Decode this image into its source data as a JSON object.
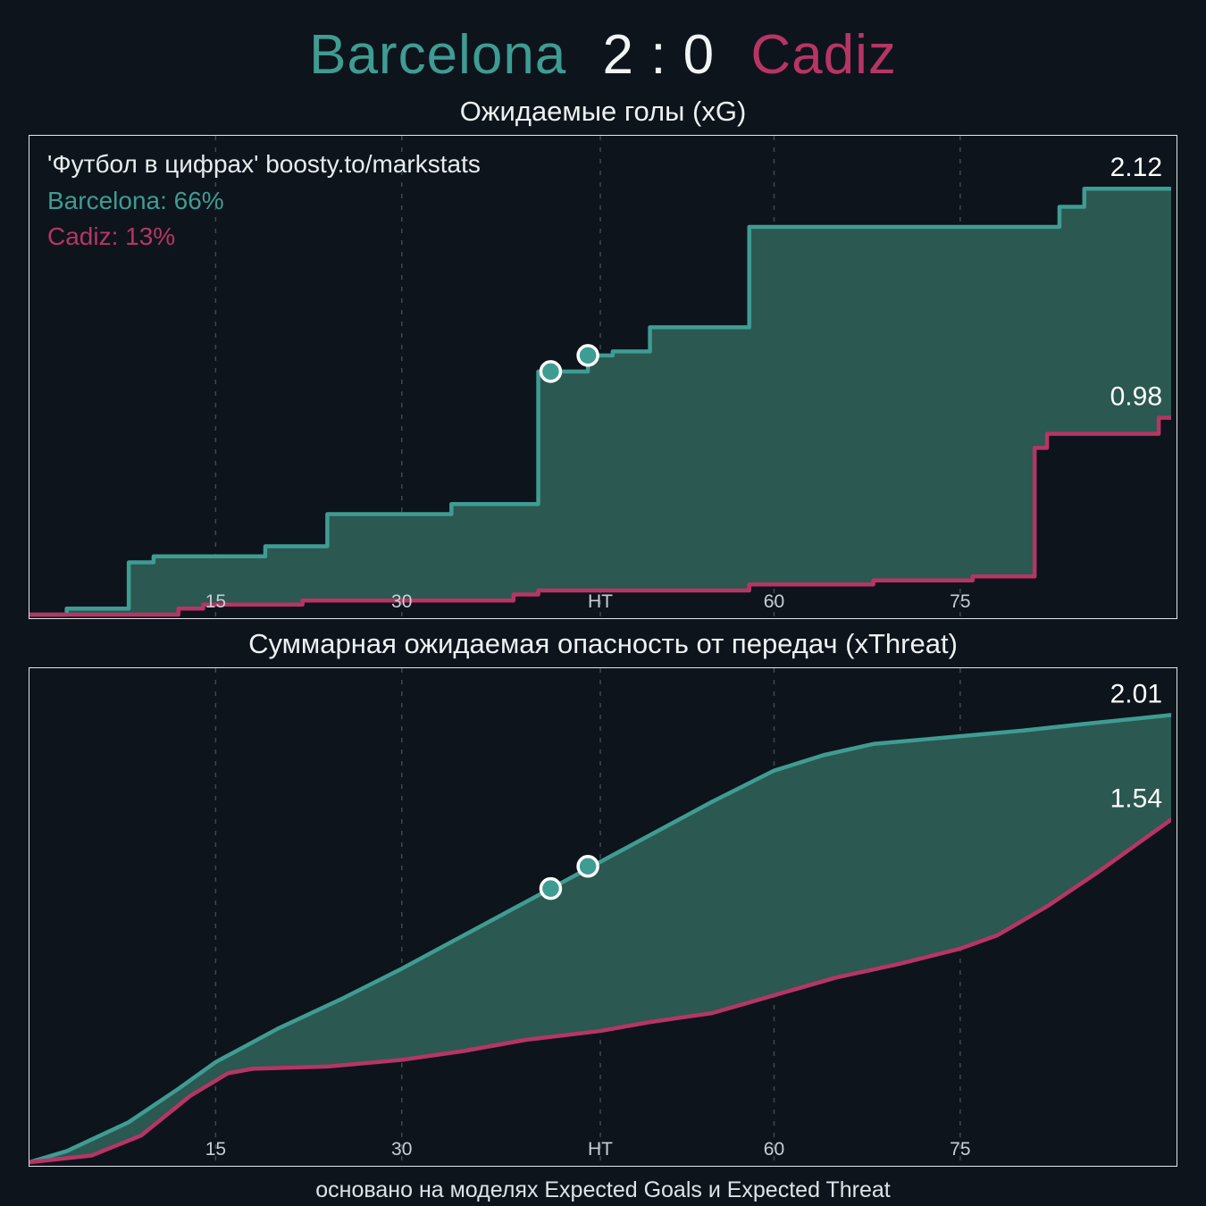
{
  "header": {
    "home_team": "Barcelona",
    "score": "2 : 0",
    "away_team": "Cadiz"
  },
  "colors": {
    "background": "#0d141c",
    "home": "#3f9c92",
    "away": "#b73565",
    "fill": "#2b5851",
    "grid": "#5d6c75",
    "tick": "#c7cfd4",
    "value_label": "#ffffff",
    "text": "#e8ecee"
  },
  "footer": {
    "note": "основано на моделях Expected Goals и Expected Threat"
  },
  "chart_data": [
    {
      "type": "area",
      "title": "Ожидаемые голы (xG)",
      "watermark": "'Футбол в цифрах' boosty.to/markstats",
      "legend": [
        {
          "label": "Barcelona: 66%",
          "color_key": "home"
        },
        {
          "label": "Cadiz: 13%",
          "color_key": "away"
        }
      ],
      "step": true,
      "xlim": [
        0,
        92
      ],
      "ylim": [
        0,
        2.25
      ],
      "x_ticks": [
        {
          "x": 15,
          "label": "15"
        },
        {
          "x": 30,
          "label": "30"
        },
        {
          "x": 46,
          "label": "HT"
        },
        {
          "x": 60,
          "label": "60"
        },
        {
          "x": 75,
          "label": "75"
        }
      ],
      "series": [
        {
          "name": "Barcelona xG",
          "final": 2.12,
          "label": "2.12",
          "color_key": "home",
          "points": [
            [
              0,
              0
            ],
            [
              3,
              0.03
            ],
            [
              8,
              0.26
            ],
            [
              10,
              0.29
            ],
            [
              19,
              0.34
            ],
            [
              24,
              0.5
            ],
            [
              34,
              0.55
            ],
            [
              41,
              1.21
            ],
            [
              45,
              1.29
            ],
            [
              47,
              1.31
            ],
            [
              50,
              1.43
            ],
            [
              58,
              1.93
            ],
            [
              83,
              2.03
            ],
            [
              85,
              2.12
            ],
            [
              92,
              2.12
            ]
          ]
        },
        {
          "name": "Cadiz xG",
          "final": 0.98,
          "label": "0.98",
          "color_key": "away",
          "points": [
            [
              0,
              0
            ],
            [
              12,
              0.03
            ],
            [
              14,
              0.05
            ],
            [
              22,
              0.07
            ],
            [
              39,
              0.1
            ],
            [
              41,
              0.12
            ],
            [
              58,
              0.15
            ],
            [
              68,
              0.17
            ],
            [
              76,
              0.19
            ],
            [
              81,
              0.83
            ],
            [
              82,
              0.9
            ],
            [
              91,
              0.98
            ],
            [
              92,
              0.98
            ]
          ]
        }
      ],
      "goal_markers": [
        [
          42,
          1.21
        ],
        [
          45,
          1.29
        ]
      ]
    },
    {
      "type": "area",
      "title": "Суммарная ожидаемая опасность от передач (xThreat)",
      "watermark": "",
      "legend": [],
      "step": false,
      "xlim": [
        0,
        92
      ],
      "ylim": [
        0,
        2.1
      ],
      "x_ticks": [
        {
          "x": 15,
          "label": "15"
        },
        {
          "x": 30,
          "label": "30"
        },
        {
          "x": 46,
          "label": "HT"
        },
        {
          "x": 60,
          "label": "60"
        },
        {
          "x": 75,
          "label": "75"
        }
      ],
      "series": [
        {
          "name": "Barcelona xThreat",
          "final": 2.01,
          "label": "2.01",
          "color_key": "home",
          "points": [
            [
              0,
              0
            ],
            [
              3,
              0.05
            ],
            [
              8,
              0.18
            ],
            [
              12,
              0.33
            ],
            [
              15,
              0.45
            ],
            [
              20,
              0.6
            ],
            [
              25,
              0.73
            ],
            [
              30,
              0.87
            ],
            [
              35,
              1.02
            ],
            [
              40,
              1.17
            ],
            [
              43,
              1.26
            ],
            [
              46,
              1.35
            ],
            [
              50,
              1.47
            ],
            [
              55,
              1.62
            ],
            [
              60,
              1.76
            ],
            [
              64,
              1.83
            ],
            [
              68,
              1.88
            ],
            [
              72,
              1.9
            ],
            [
              76,
              1.92
            ],
            [
              80,
              1.94
            ],
            [
              85,
              1.97
            ],
            [
              92,
              2.01
            ]
          ]
        },
        {
          "name": "Cadiz xThreat",
          "final": 1.54,
          "label": "1.54",
          "color_key": "away",
          "points": [
            [
              0,
              0
            ],
            [
              5,
              0.03
            ],
            [
              9,
              0.12
            ],
            [
              13,
              0.3
            ],
            [
              16,
              0.4
            ],
            [
              18,
              0.42
            ],
            [
              24,
              0.43
            ],
            [
              30,
              0.46
            ],
            [
              35,
              0.5
            ],
            [
              40,
              0.55
            ],
            [
              46,
              0.59
            ],
            [
              50,
              0.63
            ],
            [
              55,
              0.67
            ],
            [
              60,
              0.75
            ],
            [
              65,
              0.83
            ],
            [
              70,
              0.89
            ],
            [
              75,
              0.96
            ],
            [
              78,
              1.02
            ],
            [
              82,
              1.15
            ],
            [
              86,
              1.3
            ],
            [
              89,
              1.42
            ],
            [
              92,
              1.54
            ]
          ]
        }
      ],
      "goal_markers": [
        [
          42,
          1.23
        ],
        [
          45,
          1.33
        ]
      ]
    }
  ]
}
